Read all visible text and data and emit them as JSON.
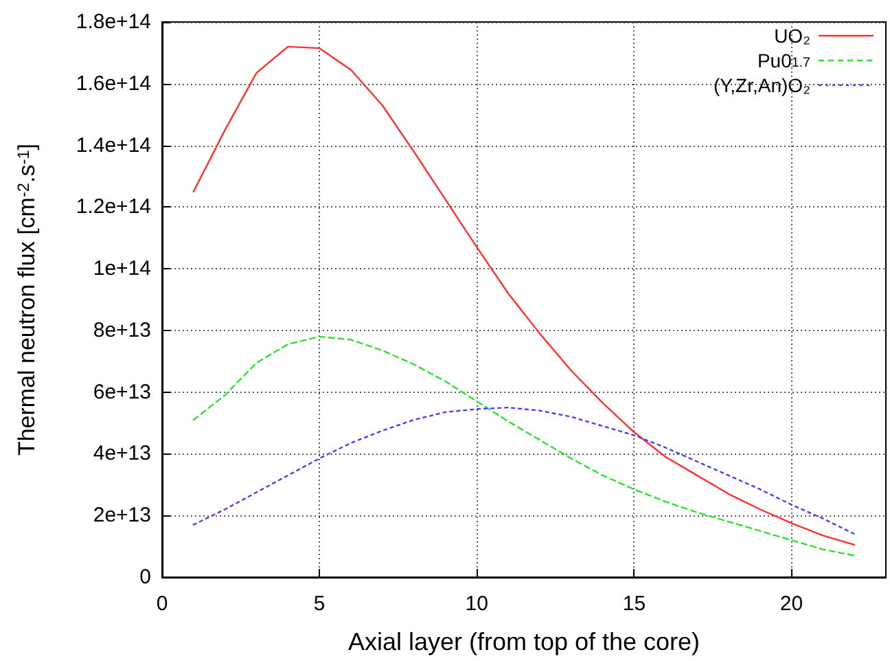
{
  "chart_data": {
    "type": "line",
    "xlabel": "Axial layer (from top of the core)",
    "ylabel": "Thermal neutron flux [cm$^{-2}$.s$^{-1}$]",
    "x": [
      1,
      2,
      3,
      4,
      5,
      6,
      7,
      8,
      9,
      10,
      11,
      12,
      13,
      14,
      15,
      16,
      17,
      18,
      19,
      20,
      21,
      22
    ],
    "xlim": [
      0,
      23
    ],
    "xticks": [
      0,
      5,
      10,
      15,
      20
    ],
    "ylim": [
      0,
      180000000000000
    ],
    "yticks": [
      {
        "value": 0,
        "label": "0"
      },
      {
        "value": 20000000000000,
        "label": "2e+13"
      },
      {
        "value": 40000000000000,
        "label": "4e+13"
      },
      {
        "value": 60000000000000,
        "label": "6e+13"
      },
      {
        "value": 80000000000000,
        "label": "8e+13"
      },
      {
        "value": 100000000000000,
        "label": "1e+14"
      },
      {
        "value": 120000000000000,
        "label": "1.2e+14"
      },
      {
        "value": 140000000000000,
        "label": "1.4e+14"
      },
      {
        "value": 160000000000000,
        "label": "1.6e+14"
      },
      {
        "value": 180000000000000,
        "label": "1.8e+14"
      }
    ],
    "grid": true,
    "legend": "top right",
    "marker": "none",
    "series": [
      {
        "name": "UO₂",
        "color": "#ff3030",
        "line_style": "solid",
        "values": [
          125000000000000,
          145000000000000,
          163500000000000,
          172000000000000,
          171500000000000,
          164500000000000,
          153000000000000,
          138000000000000,
          122500000000000,
          107000000000000,
          92000000000000,
          79000000000000,
          67000000000000,
          56500000000000,
          47000000000000,
          39000000000000,
          33000000000000,
          27000000000000,
          22000000000000,
          17500000000000,
          13500000000000,
          10500000000000
        ]
      },
      {
        "name": "Pu0$_{1.7}$",
        "color": "#30e030",
        "line_style": "dashed",
        "values": [
          51000000000000,
          59000000000000,
          69500000000000,
          75500000000000,
          78000000000000,
          77000000000000,
          73500000000000,
          69000000000000,
          63500000000000,
          57000000000000,
          50500000000000,
          44500000000000,
          38500000000000,
          33000000000000,
          28500000000000,
          24500000000000,
          21000000000000,
          18000000000000,
          15000000000000,
          12000000000000,
          9000000000000,
          7000000000000
        ]
      },
      {
        "name": "(Y,Zr,An)O₂",
        "color": "#4040ff",
        "line_style": "dotted",
        "values": [
          17000000000000,
          22000000000000,
          27500000000000,
          33000000000000,
          38500000000000,
          43500000000000,
          47500000000000,
          51000000000000,
          53500000000000,
          54500000000000,
          55000000000000,
          54000000000000,
          52000000000000,
          49000000000000,
          46000000000000,
          42000000000000,
          37500000000000,
          33000000000000,
          28500000000000,
          23500000000000,
          19000000000000,
          14000000000000
        ]
      }
    ]
  }
}
